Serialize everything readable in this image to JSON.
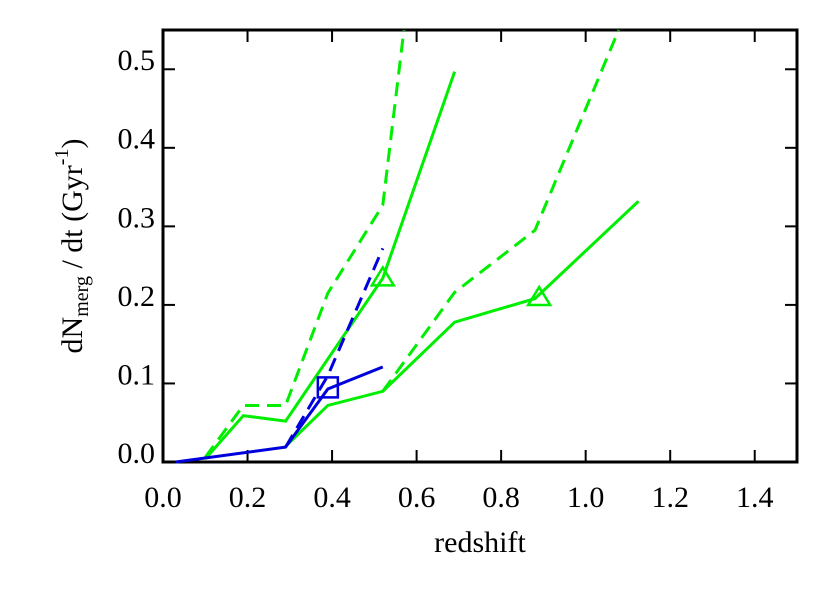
{
  "chart_data": {
    "type": "line",
    "xlabel": "redshift",
    "ylabel": [
      "dN",
      "merg",
      " / dt  (Gyr",
      "-1",
      ")"
    ],
    "xlim": [
      0,
      1.5
    ],
    "ylim": [
      0,
      0.55
    ],
    "xticks": [
      {
        "value": 0,
        "label": "0.0"
      },
      0.2,
      0.4,
      0.6,
      0.8,
      {
        "value": 1,
        "label": "1.0"
      },
      1.2,
      1.4
    ],
    "yticks": [
      {
        "value": 0,
        "label": "0.0"
      },
      0.1,
      0.2,
      0.3,
      0.4,
      0.5
    ],
    "series": [
      {
        "color": "#00ee00",
        "dash": false,
        "x": [
          0.1,
          0.19,
          0.29,
          0.52,
          0.69
        ],
        "values": [
          0.004,
          0.059,
          0.052,
          0.234,
          0.497
        ]
      },
      {
        "color": "#00ee00",
        "dash": false,
        "x": [
          0.29,
          0.39,
          0.52,
          0.69,
          0.88,
          1.125
        ],
        "values": [
          0.02,
          0.072,
          0.09,
          0.178,
          0.208,
          0.332
        ]
      },
      {
        "color": "#00ee00",
        "dash": true,
        "x": [
          0.1,
          0.19,
          0.29,
          0.39,
          0.52,
          0.57
        ],
        "values": [
          0.006,
          0.072,
          0.072,
          0.215,
          0.327,
          0.55
        ]
      },
      {
        "color": "#00ee00",
        "dash": true,
        "x": [
          0.52,
          0.69,
          0.88,
          1.078
        ],
        "values": [
          0.09,
          0.216,
          0.295,
          0.55
        ]
      },
      {
        "color": "#0000dd",
        "dash": false,
        "x": [
          0.03,
          0.29,
          0.39,
          0.52
        ],
        "values": [
          0,
          0.019,
          0.093,
          0.121
        ]
      },
      {
        "color": "#0000dd",
        "dash": true,
        "x": [
          0.29,
          0.39,
          0.52
        ],
        "values": [
          0.019,
          0.11,
          0.272
        ]
      }
    ],
    "markers": [
      {
        "shape": "triangle",
        "color": "#00ee00",
        "x": [
          0.52,
          0.89
        ],
        "values": [
          0.235,
          0.21
        ]
      },
      {
        "shape": "square",
        "color": "#0000dd",
        "x": [
          0.39
        ],
        "values": [
          0.095
        ]
      }
    ]
  }
}
